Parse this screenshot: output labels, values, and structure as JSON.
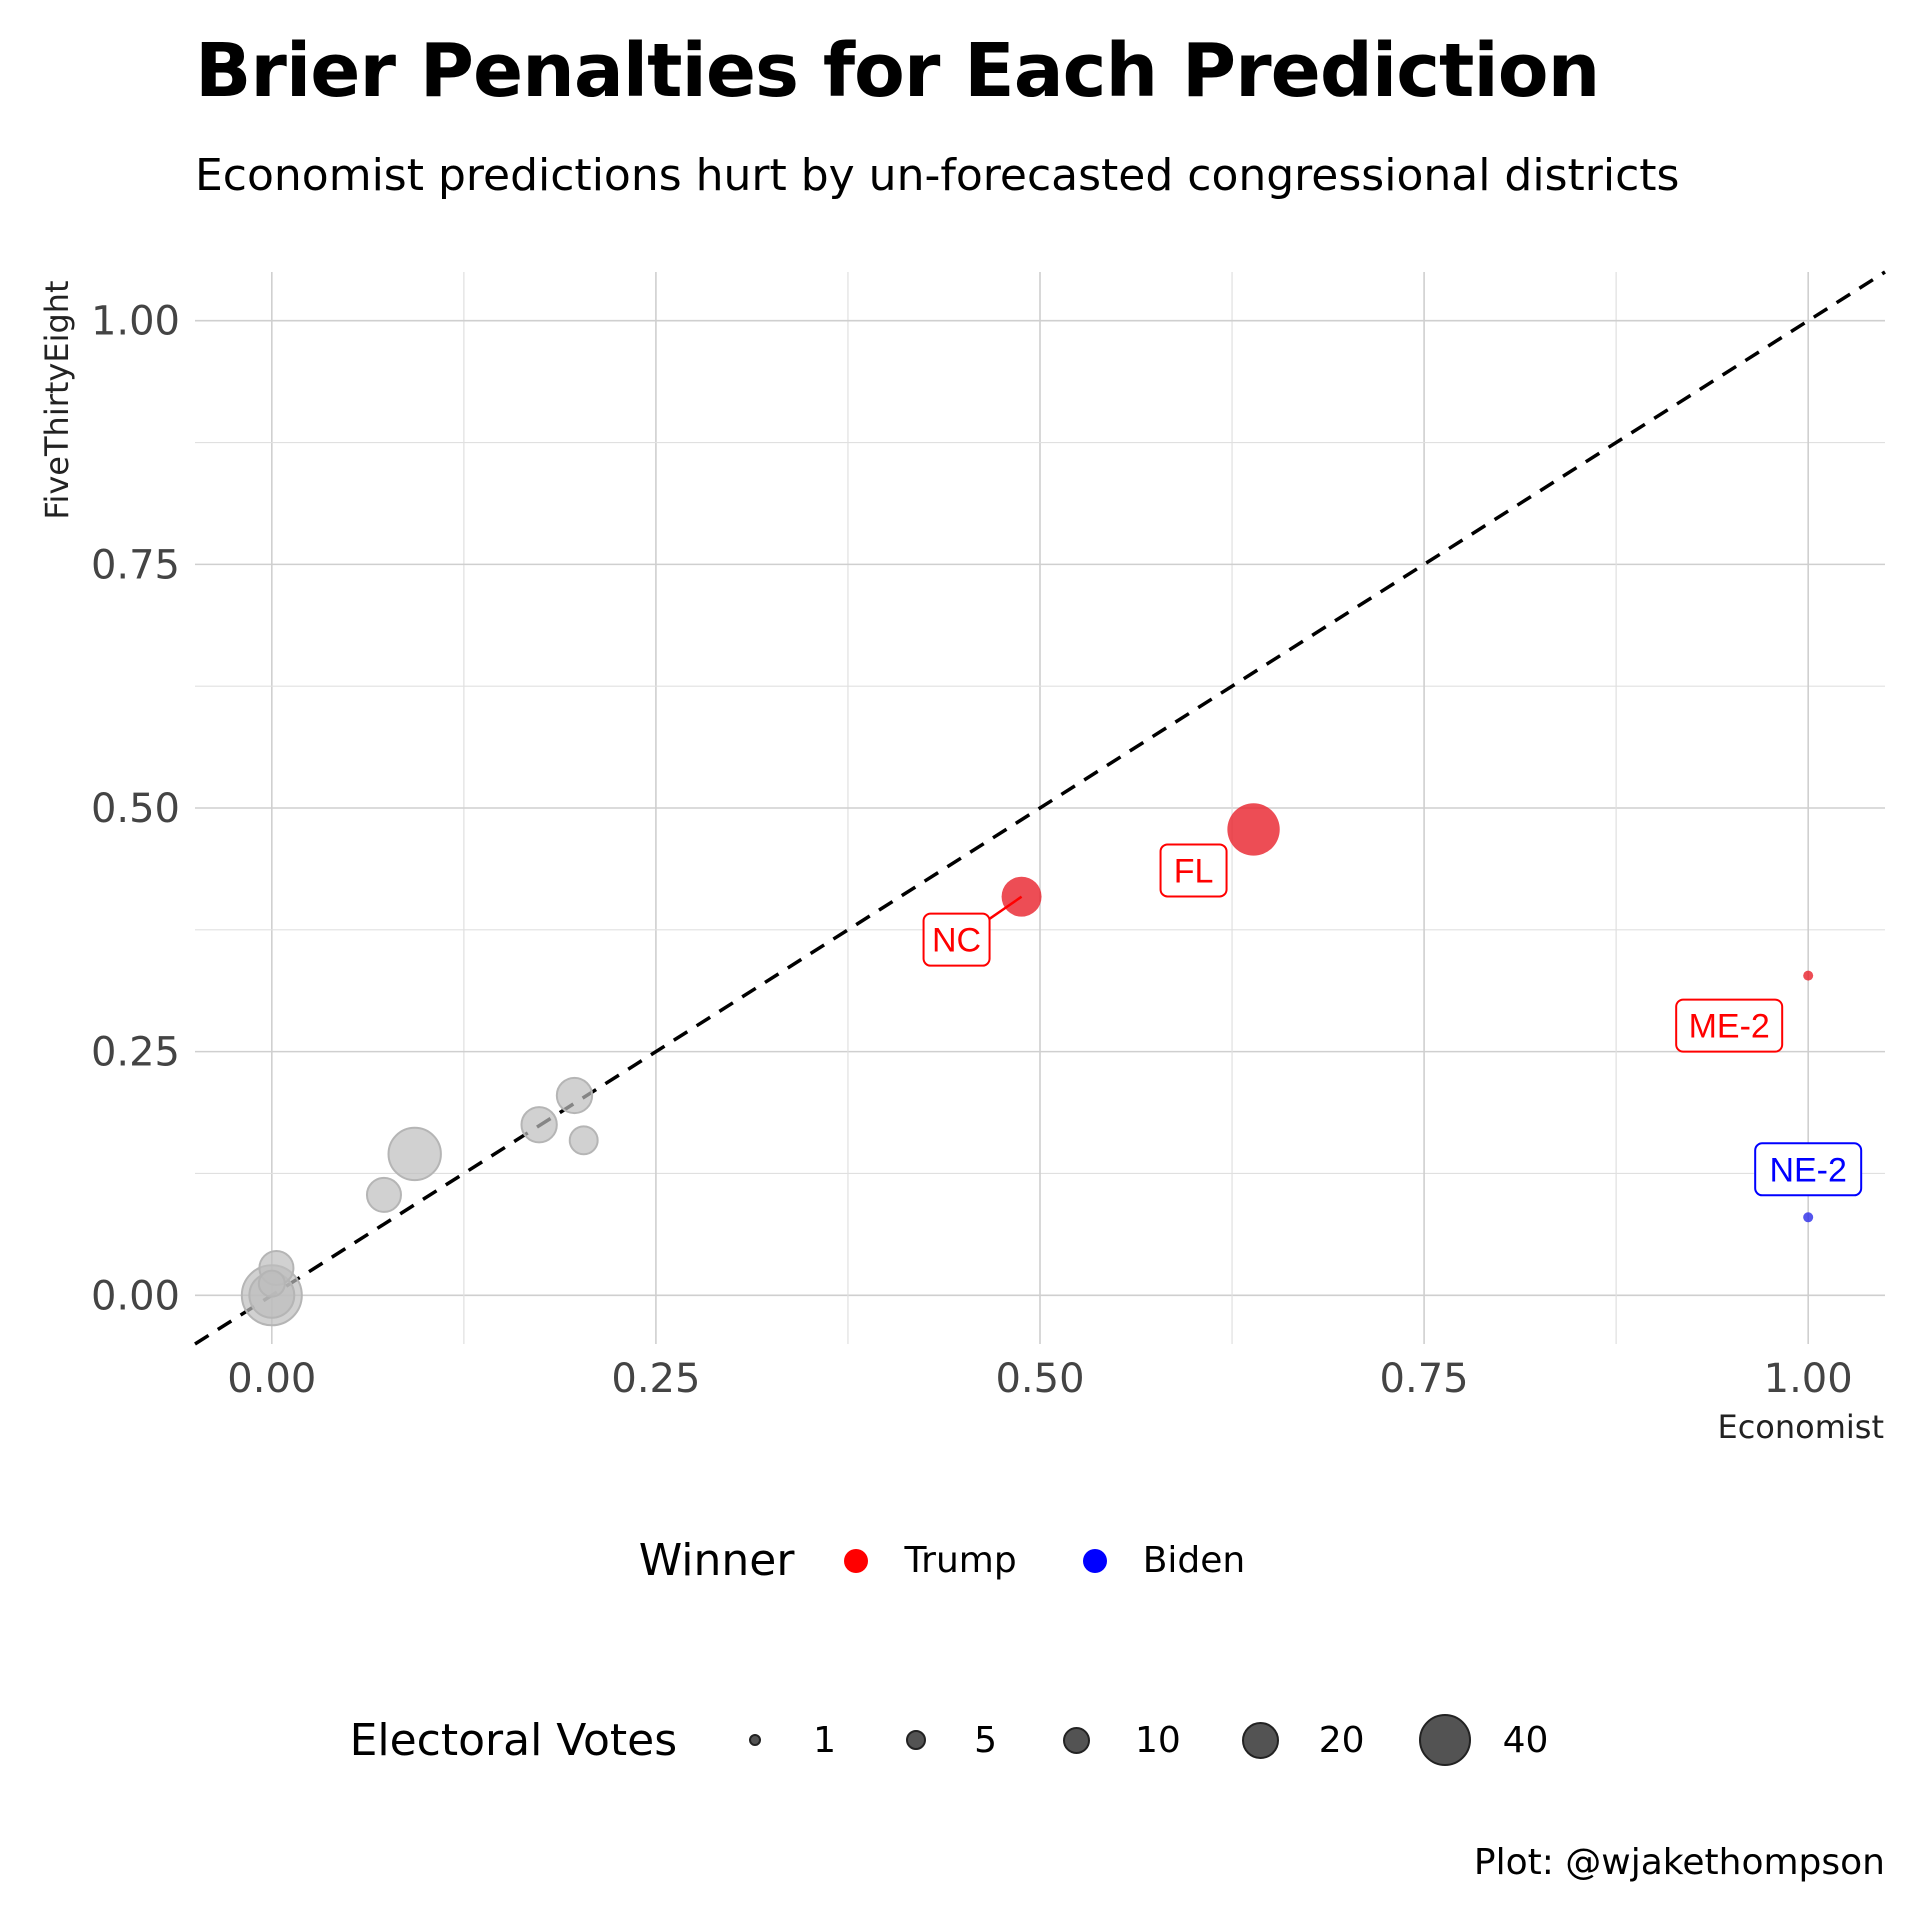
{
  "chart_data": {
    "type": "scatter",
    "title": "Brier Penalties for Each Prediction",
    "subtitle": "Economist predictions hurt by un-forecasted congressional districts",
    "xlabel": "Economist",
    "ylabel": "FiveThirtyEight",
    "xlim": [
      -0.05,
      1.05
    ],
    "ylim": [
      -0.05,
      1.05
    ],
    "xticks": [
      "0.00",
      "0.25",
      "0.50",
      "0.75",
      "1.00"
    ],
    "yticks": [
      "0.00",
      "0.25",
      "0.50",
      "0.75",
      "1.00"
    ],
    "grid": true,
    "reference_line": "y = x (dashed)",
    "points": [
      {
        "x": 0.0,
        "y": 0.0,
        "ev": 40,
        "winner": null
      },
      {
        "x": 0.0,
        "y": 0.0,
        "ev": 20,
        "winner": null
      },
      {
        "x": 0.003,
        "y": 0.028,
        "ev": 10,
        "winner": null
      },
      {
        "x": 0.0,
        "y": 0.012,
        "ev": 5,
        "winner": null
      },
      {
        "x": 0.073,
        "y": 0.103,
        "ev": 10,
        "winner": null
      },
      {
        "x": 0.093,
        "y": 0.145,
        "ev": 29,
        "winner": null
      },
      {
        "x": 0.174,
        "y": 0.175,
        "ev": 11,
        "winner": null
      },
      {
        "x": 0.197,
        "y": 0.205,
        "ev": 11,
        "winner": null
      },
      {
        "x": 0.203,
        "y": 0.159,
        "ev": 6,
        "winner": null
      },
      {
        "x": 0.488,
        "y": 0.409,
        "ev": 15,
        "winner": "Trump",
        "label": "NC"
      },
      {
        "x": 0.639,
        "y": 0.478,
        "ev": 29,
        "winner": "Trump",
        "label": "FL"
      },
      {
        "x": 1.0,
        "y": 0.328,
        "ev": 1,
        "winner": "Trump",
        "label": "ME-2"
      },
      {
        "x": 1.0,
        "y": 0.08,
        "ev": 1,
        "winner": "Biden",
        "label": "NE-2"
      }
    ],
    "legend": {
      "winner": {
        "title": "Winner",
        "entries": [
          {
            "label": "Trump",
            "color": "#ff0000"
          },
          {
            "label": "Biden",
            "color": "#0000ff"
          }
        ]
      },
      "size": {
        "title": "Electoral Votes",
        "entries": [
          "1",
          "5",
          "10",
          "20",
          "40"
        ]
      }
    },
    "colors": {
      "Trump": "#e8202a",
      "Biden": "#2b2be8",
      "none": "#bdbdbd"
    },
    "caption": "Plot: @wjakethompson"
  }
}
